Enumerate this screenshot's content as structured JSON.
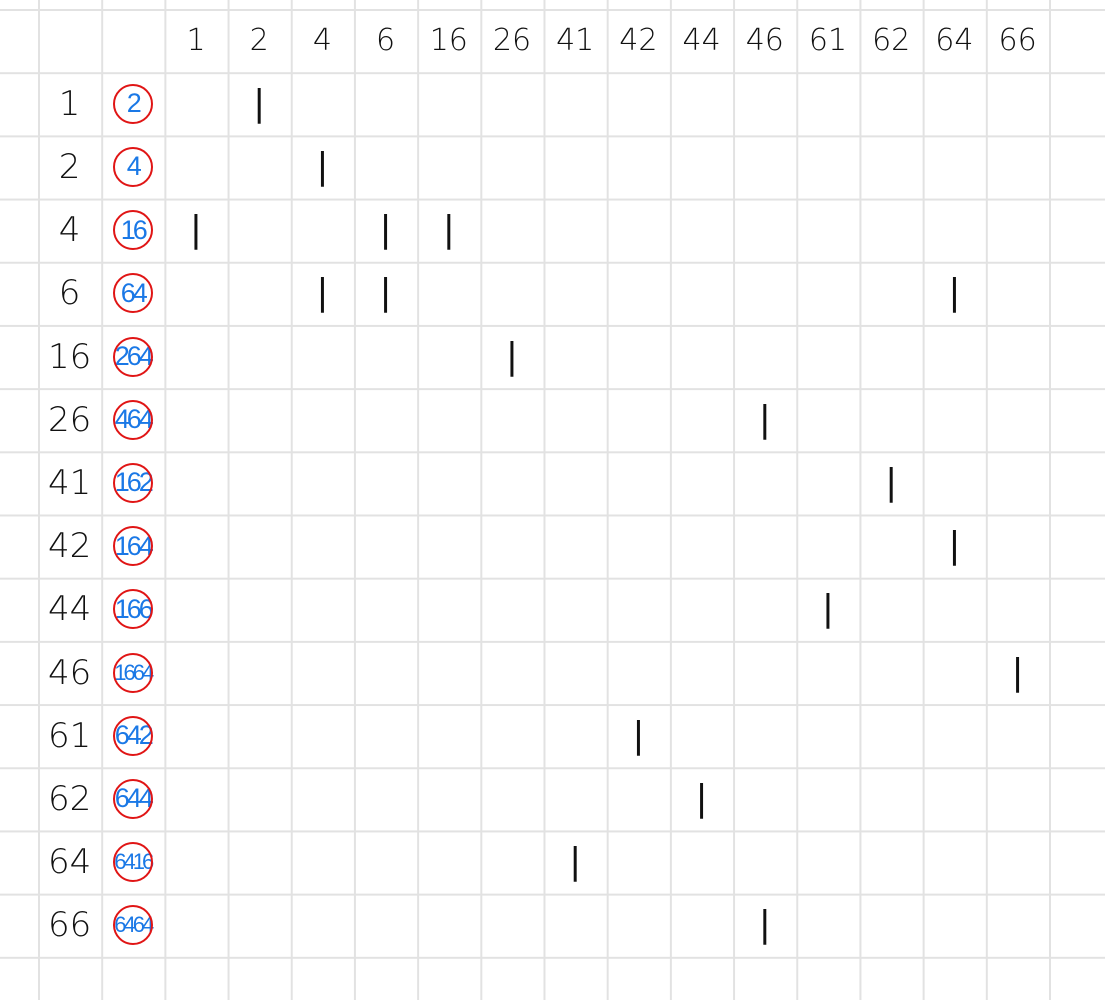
{
  "colors": {
    "grid_line": "#e2e2e2",
    "ink_black": "#111111",
    "ink_blue": "#1a78e6",
    "ink_red": "#e01515"
  },
  "column_headers": [
    "1",
    "2",
    "4",
    "6",
    "16",
    "26",
    "41",
    "42",
    "44",
    "46",
    "61",
    "62",
    "64",
    "66"
  ],
  "rows": [
    {
      "label": "1",
      "value": "2",
      "marks": [
        "2"
      ]
    },
    {
      "label": "2",
      "value": "4",
      "marks": [
        "4"
      ]
    },
    {
      "label": "4",
      "value": "16",
      "marks": [
        "1",
        "6",
        "16"
      ]
    },
    {
      "label": "6",
      "value": "64",
      "marks": [
        "4",
        "6",
        "64"
      ]
    },
    {
      "label": "16",
      "value": "264",
      "marks": [
        "26"
      ]
    },
    {
      "label": "26",
      "value": "464",
      "marks": [
        "46"
      ]
    },
    {
      "label": "41",
      "value": "162",
      "marks": [
        "62"
      ]
    },
    {
      "label": "42",
      "value": "164",
      "marks": [
        "64"
      ]
    },
    {
      "label": "44",
      "value": "166",
      "marks": [
        "61"
      ]
    },
    {
      "label": "46",
      "value": "1664",
      "marks": [
        "66"
      ]
    },
    {
      "label": "61",
      "value": "642",
      "marks": [
        "42"
      ]
    },
    {
      "label": "62",
      "value": "644",
      "marks": [
        "44"
      ]
    },
    {
      "label": "64",
      "value": "6416",
      "marks": [
        "41"
      ]
    },
    {
      "label": "66",
      "value": "6464",
      "marks": [
        "46"
      ]
    }
  ],
  "tally_mark": "|"
}
